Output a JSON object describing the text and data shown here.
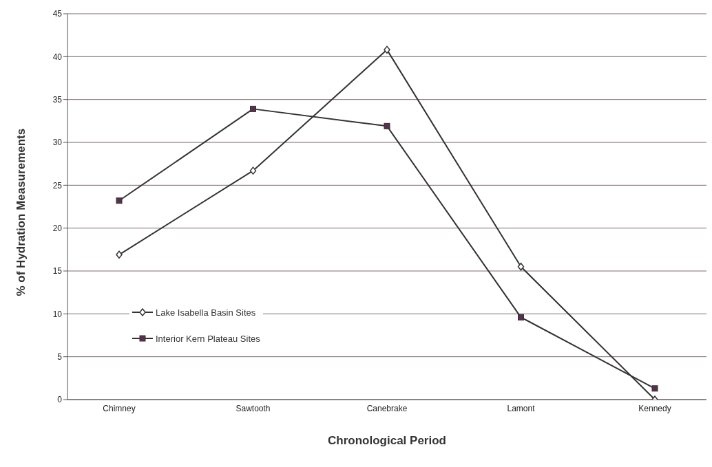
{
  "chart_data": {
    "type": "line",
    "xlabel": "Chronological Period",
    "ylabel": "% of Hydration Measurements",
    "categories": [
      "Chimney",
      "Sawtooth",
      "Canebrake",
      "Lamont",
      "Kennedy"
    ],
    "series": [
      {
        "name": "Lake Isabella Basin Sites",
        "color": "#333333",
        "marker": "diamond",
        "values": [
          16.9,
          26.7,
          40.8,
          15.5,
          0
        ]
      },
      {
        "name": "Interior Kern Plateau Sites",
        "color": "#333333",
        "marker": "square",
        "values": [
          23.2,
          33.9,
          31.9,
          9.6,
          1.3
        ]
      }
    ],
    "ylim": [
      0,
      45
    ],
    "yticks": [
      0,
      5,
      10,
      15,
      20,
      25,
      30,
      35,
      40,
      45
    ],
    "grid": "y",
    "legend": "left",
    "line_style": "solid"
  }
}
